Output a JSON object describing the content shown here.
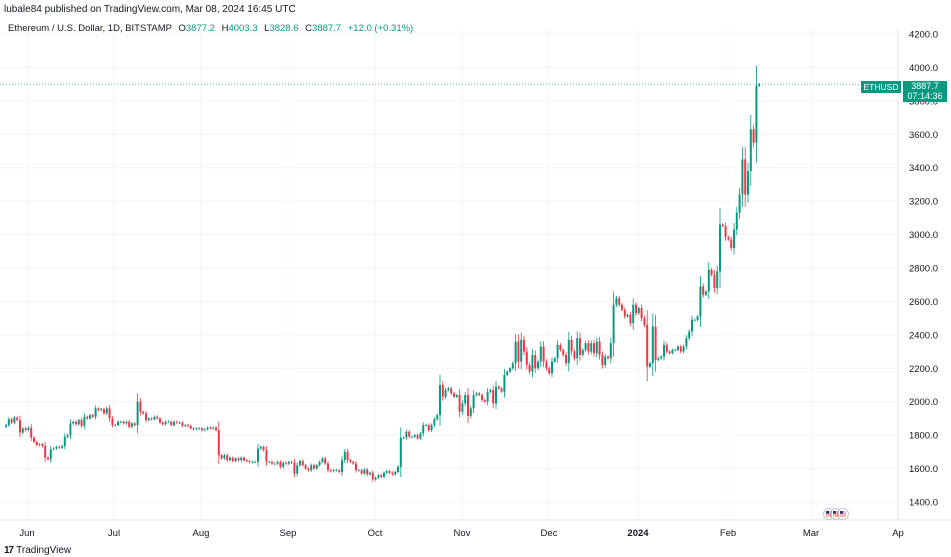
{
  "publisher_line": "lubale84 published on TradingView.com, Mar 08, 2024 16:45 UTC",
  "legend": {
    "instrument": "Ethereum / U.S. Dollar, 1D, BITSTAMP",
    "o_label": "O",
    "o": "3877.2",
    "h_label": "H",
    "h": "4003.3",
    "l_label": "L",
    "l": "3828.6",
    "c_label": "C",
    "c": "3887.7",
    "change": "+12.0 (+0.31%)"
  },
  "last_price": {
    "symbol": "ETHUSD",
    "price": "3887.7",
    "countdown": "07:14:36"
  },
  "brand": "TradingView",
  "colors": {
    "up": "#089981",
    "down": "#f23645",
    "grid": "#f0f3fa",
    "axis_text": "#131722"
  },
  "chart_data": {
    "type": "candlestick",
    "title": "Ethereum / U.S. Dollar, 1D, BITSTAMP",
    "ylim": [
      1300,
      4300
    ],
    "y_ticks": [
      "1400.0",
      "1600.0",
      "1800.0",
      "2000.0",
      "2200.0",
      "2400.0",
      "2600.0",
      "2800.0",
      "3000.0",
      "3200.0",
      "3400.0",
      "3600.0",
      "3800.0",
      "4000.0",
      "4200.0"
    ],
    "x_ticks": [
      "Jun",
      "Jul",
      "Aug",
      "Sep",
      "Oct",
      "Nov",
      "Dec",
      "2024",
      "Feb",
      "Mar",
      "Ap"
    ],
    "grid": true,
    "series": [
      {
        "start_date": "2023-05-29",
        "close": [
          1860,
          1895,
          1875,
          1905,
          1890,
          1815,
          1840,
          1830,
          1845,
          1785,
          1760,
          1740,
          1745,
          1735,
          1665,
          1655,
          1715,
          1720,
          1730,
          1725,
          1735,
          1790,
          1800,
          1870,
          1880,
          1865,
          1890,
          1855,
          1910,
          1900,
          1920,
          1910,
          1960,
          1950,
          1955,
          1930,
          1960,
          1900,
          1860,
          1860,
          1880,
          1880,
          1870,
          1880,
          1850,
          1870,
          1860,
          2000,
          1940,
          1930,
          1890,
          1900,
          1895,
          1910,
          1900,
          1875,
          1865,
          1880,
          1880,
          1860,
          1880,
          1875,
          1875,
          1855,
          1860,
          1855,
          1840,
          1835,
          1840,
          1840,
          1830,
          1835,
          1845,
          1840,
          1845,
          1830,
          1680,
          1660,
          1680,
          1650,
          1665,
          1645,
          1660,
          1650,
          1665,
          1650,
          1645,
          1640,
          1640,
          1640,
          1720,
          1730,
          1710,
          1640,
          1640,
          1630,
          1630,
          1640,
          1610,
          1635,
          1630,
          1640,
          1635,
          1570,
          1620,
          1645,
          1620,
          1600,
          1590,
          1620,
          1600,
          1620,
          1640,
          1660,
          1630,
          1590,
          1585,
          1590,
          1590,
          1580,
          1650,
          1700,
          1650,
          1640,
          1630,
          1590,
          1590,
          1570,
          1595,
          1565,
          1575,
          1535,
          1545,
          1560,
          1550,
          1575,
          1585,
          1575,
          1565,
          1580,
          1610,
          1785,
          1785,
          1820,
          1790,
          1790,
          1800,
          1780,
          1810,
          1860,
          1860,
          1830,
          1860,
          1895,
          1920,
          2100,
          2030,
          2070,
          2080,
          2050,
          2030,
          2040,
          1940,
          1990,
          2040,
          1915,
          1960,
          2040,
          2050,
          2040,
          2010,
          2000,
          2060,
          2070,
          1990,
          2090,
          2080,
          2060,
          2160,
          2180,
          2200,
          2230,
          2360,
          2240,
          2370,
          2300,
          2220,
          2180,
          2280,
          2200,
          2240,
          2330,
          2240,
          2200,
          2170,
          2240,
          2260,
          2340,
          2310,
          2280,
          2230,
          2370,
          2300,
          2260,
          2380,
          2280,
          2310,
          2350,
          2300,
          2350,
          2290,
          2360,
          2280,
          2220,
          2270,
          2260,
          2350,
          2580,
          2620,
          2580,
          2550,
          2510,
          2520,
          2470,
          2580,
          2530,
          2560,
          2500,
          2460,
          2210,
          2230,
          2450,
          2250,
          2260,
          2270,
          2340,
          2300,
          2290,
          2310,
          2310,
          2330,
          2300,
          2330,
          2380,
          2420,
          2490,
          2490,
          2510,
          2690,
          2640,
          2660,
          2790,
          2760,
          2680,
          2780,
          3060,
          3050,
          2985,
          2970,
          2920,
          3030,
          3130,
          3240,
          3450,
          3240,
          3380,
          3630,
          3550,
          3890,
          3900
        ]
      }
    ]
  },
  "news_flags": [
    "flag-1",
    "flag-2",
    "flag-3"
  ]
}
